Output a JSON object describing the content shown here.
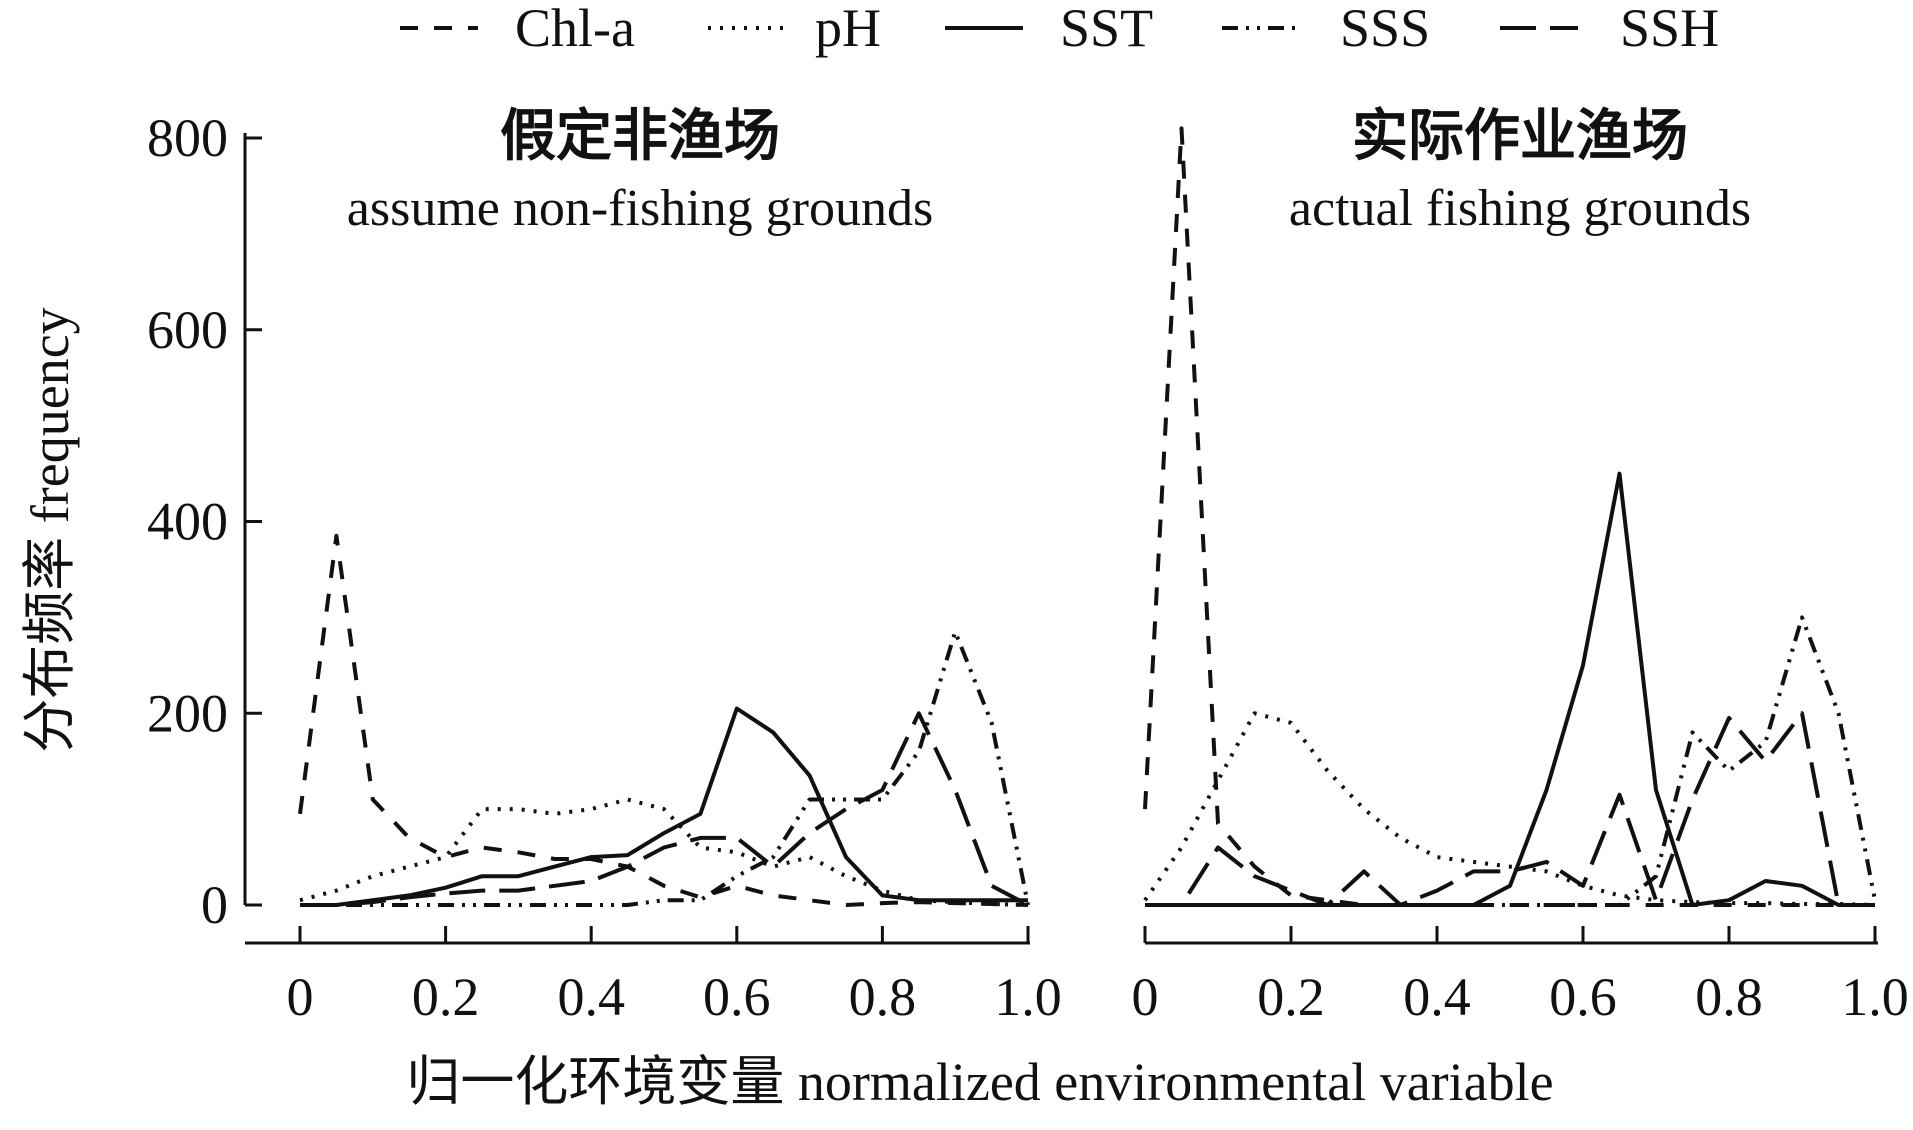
{
  "chart_data": {
    "type": "line",
    "legend": {
      "placement": "top-center",
      "entries": [
        {
          "name": "Chl-a",
          "dash": "18 16"
        },
        {
          "name": "pH",
          "dash": "3 9"
        },
        {
          "name": "SST",
          "dash": ""
        },
        {
          "name": "SSS",
          "dash": "16 8 3 8 3 8"
        },
        {
          "name": "SSH",
          "dash": "36 14"
        }
      ]
    },
    "ylabel": "分布频率 frequency",
    "xlabel": "归一化环境变量 normalized environmental variable",
    "ylim": [
      0,
      800
    ],
    "yticks": [
      0,
      200,
      400,
      600,
      800
    ],
    "panels": [
      {
        "title_cn": "假定非渔场",
        "title_en": "assume non-fishing grounds",
        "xlim": [
          0,
          1
        ],
        "xticks": [
          "0",
          "0.2",
          "0.4",
          "0.6",
          "0.8",
          "1.0"
        ],
        "x": [
          0,
          0.05,
          0.1,
          0.15,
          0.2,
          0.25,
          0.3,
          0.35,
          0.4,
          0.45,
          0.5,
          0.55,
          0.6,
          0.65,
          0.7,
          0.75,
          0.8,
          0.85,
          0.9,
          0.95,
          1.0
        ],
        "series": [
          {
            "name": "Chl-a",
            "values": [
              95,
              385,
              110,
              70,
              50,
              60,
              55,
              48,
              48,
              40,
              20,
              8,
              20,
              10,
              5,
              0,
              2,
              3,
              2,
              1,
              0
            ]
          },
          {
            "name": "pH",
            "values": [
              5,
              15,
              30,
              40,
              50,
              100,
              100,
              95,
              100,
              110,
              100,
              60,
              55,
              40,
              50,
              30,
              15,
              5,
              3,
              1,
              0
            ]
          },
          {
            "name": "SST",
            "values": [
              0,
              0,
              5,
              10,
              18,
              30,
              30,
              40,
              50,
              52,
              75,
              95,
              205,
              180,
              135,
              50,
              10,
              5,
              5,
              5,
              5
            ]
          },
          {
            "name": "SSS",
            "values": [
              0,
              0,
              0,
              0,
              0,
              0,
              0,
              0,
              0,
              0,
              5,
              5,
              30,
              50,
              110,
              110,
              110,
              160,
              285,
              190,
              0
            ]
          },
          {
            "name": "SSH",
            "values": [
              0,
              0,
              3,
              8,
              12,
              15,
              15,
              20,
              25,
              40,
              60,
              70,
              70,
              40,
              75,
              100,
              120,
              200,
              120,
              20,
              0
            ]
          }
        ]
      },
      {
        "title_cn": "实际作业渔场",
        "title_en": "actual fishing grounds",
        "xlim": [
          0,
          1
        ],
        "xticks": [
          "0",
          "0.2",
          "0.4",
          "0.6",
          "0.8",
          "1.0"
        ],
        "x": [
          0,
          0.05,
          0.1,
          0.15,
          0.2,
          0.25,
          0.3,
          0.35,
          0.4,
          0.45,
          0.5,
          0.55,
          0.6,
          0.65,
          0.7,
          0.75,
          0.8,
          0.85,
          0.9,
          0.95,
          1.0
        ],
        "series": [
          {
            "name": "Chl-a",
            "values": [
              100,
              810,
              85,
              40,
              10,
              5,
              0,
              0,
              0,
              0,
              0,
              0,
              0,
              0,
              0,
              0,
              0,
              0,
              0,
              0,
              0
            ]
          },
          {
            "name": "pH",
            "values": [
              5,
              60,
              130,
              200,
              190,
              140,
              100,
              70,
              50,
              45,
              40,
              35,
              20,
              10,
              5,
              3,
              2,
              2,
              1,
              1,
              0
            ]
          },
          {
            "name": "SST",
            "values": [
              0,
              0,
              0,
              0,
              0,
              0,
              0,
              0,
              0,
              0,
              20,
              120,
              250,
              450,
              120,
              0,
              5,
              25,
              20,
              0,
              0
            ]
          },
          {
            "name": "SSS",
            "values": [
              0,
              0,
              0,
              0,
              0,
              0,
              0,
              0,
              0,
              0,
              0,
              0,
              0,
              0,
              30,
              180,
              140,
              170,
              300,
              200,
              5
            ]
          },
          {
            "name": "SSH",
            "values": [
              0,
              0,
              60,
              30,
              15,
              0,
              35,
              0,
              15,
              35,
              35,
              45,
              20,
              115,
              5,
              110,
              195,
              150,
              200,
              0,
              0
            ]
          }
        ]
      }
    ]
  }
}
